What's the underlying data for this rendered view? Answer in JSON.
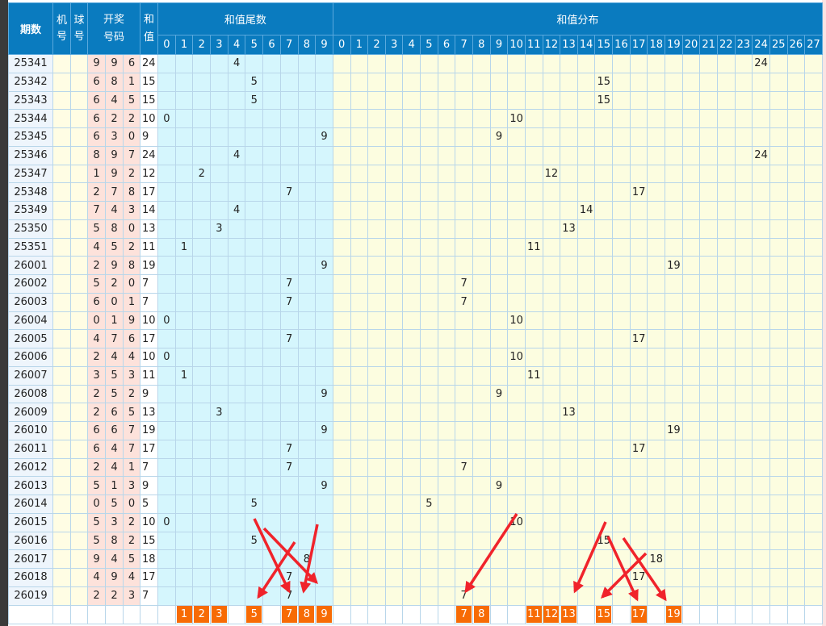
{
  "headers": {
    "period": "期数",
    "machine": "机号",
    "ball": "球号",
    "draw": "开奖号码",
    "sum": "和值",
    "tail": "和值尾数",
    "dist": "和值分布"
  },
  "tail_cols": [
    0,
    1,
    2,
    3,
    4,
    5,
    6,
    7,
    8,
    9
  ],
  "dist_cols": [
    0,
    1,
    2,
    3,
    4,
    5,
    6,
    7,
    8,
    9,
    10,
    11,
    12,
    13,
    14,
    15,
    16,
    17,
    18,
    19,
    20,
    21,
    22,
    23,
    24,
    25,
    26,
    27
  ],
  "rows": [
    {
      "period": "25341",
      "digits": [
        9,
        9,
        6
      ],
      "sum": 24
    },
    {
      "period": "25342",
      "digits": [
        6,
        8,
        1
      ],
      "sum": 15
    },
    {
      "period": "25343",
      "digits": [
        6,
        4,
        5
      ],
      "sum": 15
    },
    {
      "period": "25344",
      "digits": [
        6,
        2,
        2
      ],
      "sum": 10
    },
    {
      "period": "25345",
      "digits": [
        6,
        3,
        0
      ],
      "sum": 9
    },
    {
      "period": "25346",
      "digits": [
        8,
        9,
        7
      ],
      "sum": 24
    },
    {
      "period": "25347",
      "digits": [
        1,
        9,
        2
      ],
      "sum": 12
    },
    {
      "period": "25348",
      "digits": [
        2,
        7,
        8
      ],
      "sum": 17
    },
    {
      "period": "25349",
      "digits": [
        7,
        4,
        3
      ],
      "sum": 14
    },
    {
      "period": "25350",
      "digits": [
        5,
        8,
        0
      ],
      "sum": 13
    },
    {
      "period": "25351",
      "digits": [
        4,
        5,
        2
      ],
      "sum": 11
    },
    {
      "period": "26001",
      "digits": [
        2,
        9,
        8
      ],
      "sum": 19
    },
    {
      "period": "26002",
      "digits": [
        5,
        2,
        0
      ],
      "sum": 7
    },
    {
      "period": "26003",
      "digits": [
        6,
        0,
        1
      ],
      "sum": 7
    },
    {
      "period": "26004",
      "digits": [
        0,
        1,
        9
      ],
      "sum": 10
    },
    {
      "period": "26005",
      "digits": [
        4,
        7,
        6
      ],
      "sum": 17
    },
    {
      "period": "26006",
      "digits": [
        2,
        4,
        4
      ],
      "sum": 10
    },
    {
      "period": "26007",
      "digits": [
        3,
        5,
        3
      ],
      "sum": 11
    },
    {
      "period": "26008",
      "digits": [
        2,
        5,
        2
      ],
      "sum": 9
    },
    {
      "period": "26009",
      "digits": [
        2,
        6,
        5
      ],
      "sum": 13
    },
    {
      "period": "26010",
      "digits": [
        6,
        6,
        7
      ],
      "sum": 19
    },
    {
      "period": "26011",
      "digits": [
        6,
        4,
        7
      ],
      "sum": 17
    },
    {
      "period": "26012",
      "digits": [
        2,
        4,
        1
      ],
      "sum": 7
    },
    {
      "period": "26013",
      "digits": [
        5,
        1,
        3
      ],
      "sum": 9
    },
    {
      "period": "26014",
      "digits": [
        0,
        5,
        0
      ],
      "sum": 5
    },
    {
      "period": "26015",
      "digits": [
        5,
        3,
        2
      ],
      "sum": 10
    },
    {
      "period": "26016",
      "digits": [
        5,
        8,
        2
      ],
      "sum": 15
    },
    {
      "period": "26017",
      "digits": [
        9,
        4,
        5
      ],
      "sum": 18
    },
    {
      "period": "26018",
      "digits": [
        4,
        9,
        4
      ],
      "sum": 17
    },
    {
      "period": "26019",
      "digits": [
        2,
        2,
        3
      ],
      "sum": 7
    }
  ],
  "selected_tails": [
    1,
    2,
    3,
    5,
    7,
    8,
    9
  ],
  "selected_sums": [
    7,
    8,
    11,
    12,
    13,
    15,
    17,
    19
  ],
  "colors": {
    "header": "#0a7bbf",
    "selected": "#f76b05",
    "arrow": "#f0232b"
  }
}
